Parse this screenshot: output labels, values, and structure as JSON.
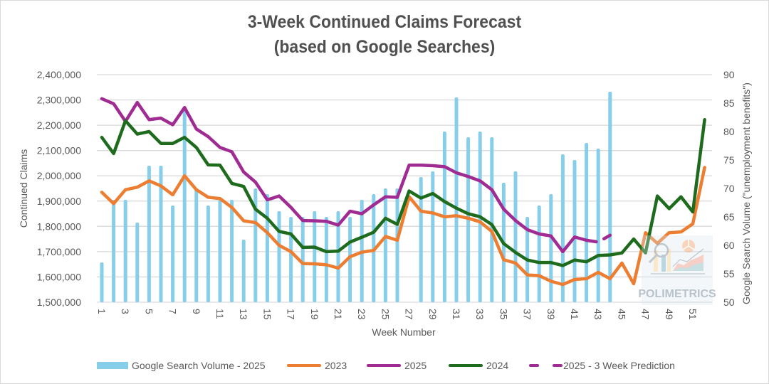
{
  "chart_data": {
    "type": "bar+line",
    "title": [
      "3-Week Continued Claims Forecast",
      "(based on Google Searches)"
    ],
    "xlabel": "Week Number",
    "ylabel": "Continued Claims",
    "y2label": "Google Search Volume (\"unemployment benefits\")",
    "ylim": [
      1500000,
      2400000
    ],
    "y2lim": [
      50,
      90
    ],
    "yticks": [
      "1,500,000",
      "1,600,000",
      "1,700,000",
      "1,800,000",
      "1,900,000",
      "2,000,000",
      "2,100,000",
      "2,200,000",
      "2,300,000",
      "2,400,000"
    ],
    "y2ticks": [
      "50",
      "55",
      "60",
      "65",
      "70",
      "75",
      "80",
      "85",
      "90"
    ],
    "xticks": [
      "1",
      "3",
      "5",
      "7",
      "9",
      "11",
      "13",
      "15",
      "17",
      "19",
      "21",
      "23",
      "25",
      "27",
      "29",
      "31",
      "33",
      "35",
      "37",
      "39",
      "41",
      "43",
      "45",
      "47",
      "49",
      "51"
    ],
    "grid": true,
    "legend_position": "bottom",
    "weeks": [
      1,
      2,
      3,
      4,
      5,
      6,
      7,
      8,
      9,
      10,
      11,
      12,
      13,
      14,
      15,
      16,
      17,
      18,
      19,
      20,
      21,
      22,
      23,
      24,
      25,
      26,
      27,
      28,
      29,
      30,
      31,
      32,
      33,
      34,
      35,
      36,
      37,
      38,
      39,
      40,
      41,
      42,
      43,
      44,
      45,
      46,
      47,
      48,
      49,
      50,
      51,
      52
    ],
    "series": [
      {
        "name": "Google Search Volume - 2025",
        "type": "bar",
        "axis": "right",
        "color": "#87CEEB",
        "values": [
          57,
          68,
          68,
          64,
          74,
          74,
          67,
          84,
          70,
          67,
          68,
          68,
          61,
          70,
          69,
          66,
          65,
          65,
          66,
          65,
          66,
          65,
          68,
          69,
          70,
          70,
          null,
          72,
          73,
          80,
          86,
          79,
          80,
          79,
          71,
          73,
          65,
          67,
          69,
          76,
          75,
          78,
          77,
          87,
          null,
          null,
          null,
          null,
          null,
          null,
          null,
          null
        ]
      },
      {
        "name": "2023",
        "type": "line",
        "axis": "left",
        "color": "#ED7D31",
        "values": [
          1935000,
          1890000,
          1945000,
          1955000,
          1980000,
          1960000,
          1925000,
          2000000,
          1945000,
          1915000,
          1910000,
          1875000,
          1822000,
          1815000,
          1775000,
          1725000,
          1700000,
          1653000,
          1652000,
          1648000,
          1635000,
          1680000,
          1698000,
          1705000,
          1760000,
          1745000,
          1917000,
          1860000,
          1853000,
          1838000,
          1842000,
          1832000,
          1818000,
          1780000,
          1668000,
          1655000,
          1608000,
          1605000,
          1583000,
          1570000,
          1590000,
          1593000,
          1618000,
          1593000,
          1655000,
          1573000,
          1775000,
          1733000,
          1775000,
          1778000,
          1810000,
          2033000
        ]
      },
      {
        "name": "2025",
        "type": "line",
        "axis": "left",
        "color": "#A02B93",
        "values": [
          2305000,
          2285000,
          2215000,
          2290000,
          2222000,
          2228000,
          2202000,
          2270000,
          2185000,
          2155000,
          2112000,
          2095000,
          2015000,
          1975000,
          1905000,
          1920000,
          1875000,
          1823000,
          1822000,
          1820000,
          1805000,
          1860000,
          1850000,
          1885000,
          1917000,
          1915000,
          2042000,
          2042000,
          2040000,
          2036000,
          2012000,
          1997000,
          1980000,
          1945000,
          1868000,
          1823000,
          1787000,
          1770000,
          1762000,
          1700000,
          1758000,
          1745000,
          null,
          null,
          null,
          null,
          null,
          null,
          null,
          null,
          null,
          null
        ]
      },
      {
        "name": "2024",
        "type": "line",
        "axis": "left",
        "color": "#1E6B1E",
        "values": [
          2152000,
          2088000,
          2218000,
          2165000,
          2175000,
          2128000,
          2128000,
          2152000,
          2112000,
          2043000,
          2042000,
          1970000,
          1958000,
          1868000,
          1832000,
          1780000,
          1770000,
          1717000,
          1718000,
          1700000,
          1702000,
          1738000,
          1757000,
          1777000,
          1832000,
          1808000,
          1940000,
          1912000,
          1930000,
          1898000,
          1872000,
          1850000,
          1838000,
          1807000,
          1732000,
          1697000,
          1667000,
          1657000,
          1657000,
          1645000,
          1667000,
          1660000,
          1685000,
          1687000,
          1695000,
          1750000,
          1695000,
          1920000,
          1870000,
          1917000,
          1857000,
          2222000
        ]
      },
      {
        "name": "2025 - 3 Week Prediction",
        "type": "line",
        "axis": "left",
        "color": "#A02B93",
        "dashed": true,
        "values": [
          null,
          null,
          null,
          null,
          null,
          null,
          null,
          null,
          null,
          null,
          null,
          null,
          null,
          null,
          null,
          null,
          null,
          null,
          null,
          null,
          null,
          null,
          null,
          null,
          null,
          null,
          null,
          null,
          null,
          null,
          null,
          null,
          null,
          null,
          null,
          null,
          null,
          null,
          null,
          null,
          null,
          1745000,
          1738000,
          1765000,
          null,
          null,
          null,
          null,
          null,
          null,
          null,
          null
        ]
      }
    ]
  },
  "watermark": {
    "text": "POLIMETRICS"
  }
}
